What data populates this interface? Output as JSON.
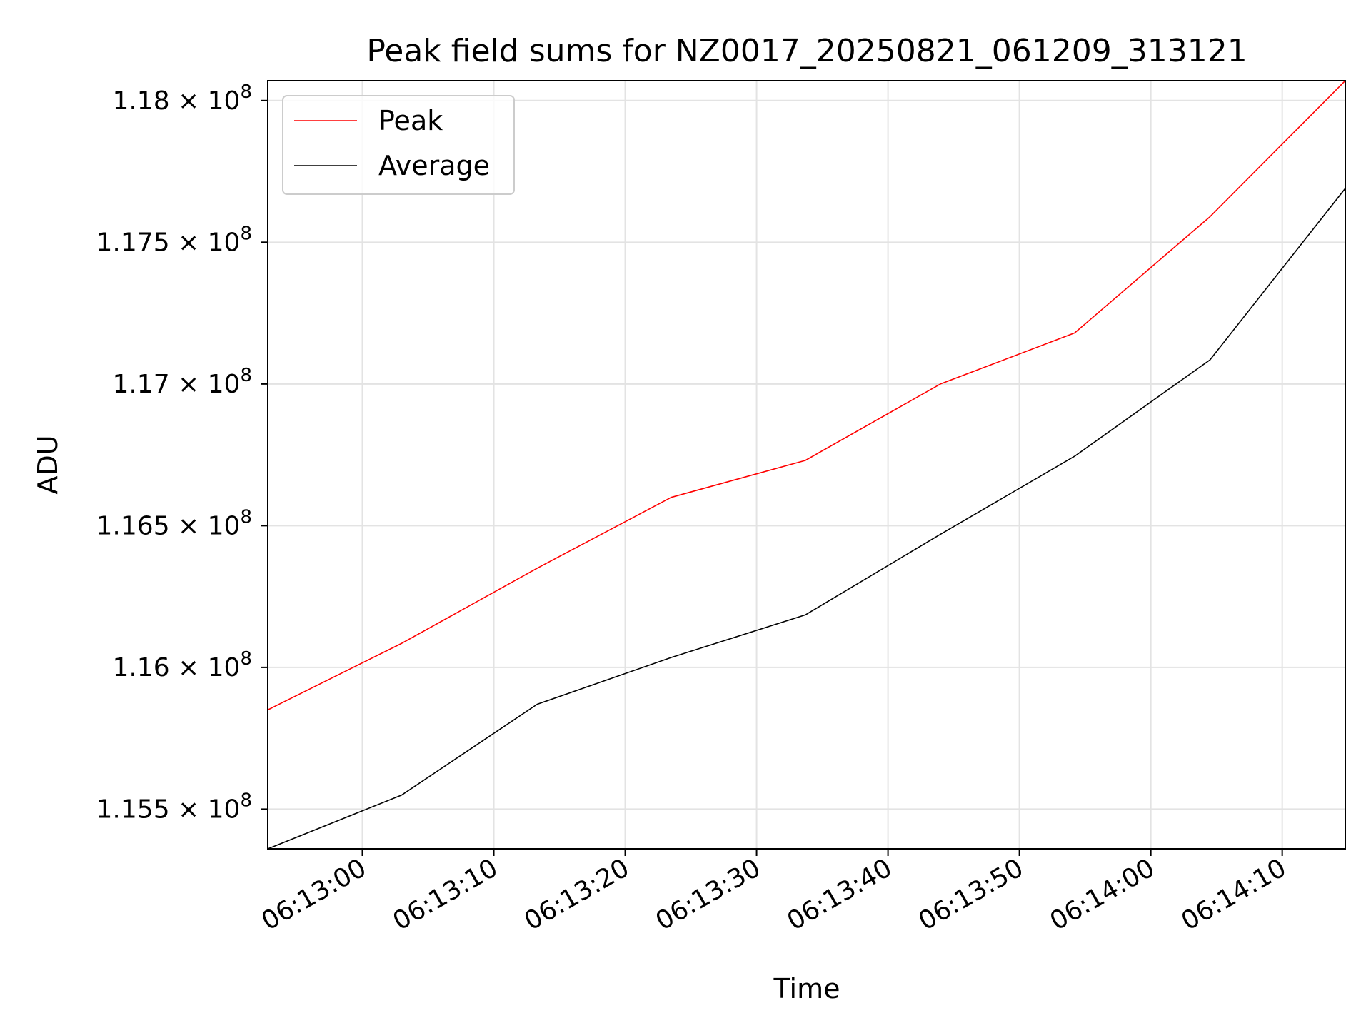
{
  "chart_data": {
    "type": "line",
    "title": "Peak field sums for NZ0017_20250821_061209_313121",
    "xlabel": "Time",
    "ylabel": "ADU",
    "x_type": "time",
    "xlim": [
      "06:12:52.8",
      "06:14:14.8"
    ],
    "ylim": [
      115360000,
      118070000
    ],
    "x_ticks": [
      "06:13:00",
      "06:13:10",
      "06:13:20",
      "06:13:30",
      "06:13:40",
      "06:13:50",
      "06:14:00",
      "06:14:10"
    ],
    "y_ticks": [
      {
        "value": 115500000,
        "mantissa": "1.155",
        "exponent": "8"
      },
      {
        "value": 116000000,
        "mantissa": "1.16",
        "exponent": "8"
      },
      {
        "value": 116500000,
        "mantissa": "1.165",
        "exponent": "8"
      },
      {
        "value": 117000000,
        "mantissa": "1.17",
        "exponent": "8"
      },
      {
        "value": 117500000,
        "mantissa": "1.175",
        "exponent": "8"
      },
      {
        "value": 118000000,
        "mantissa": "1.18",
        "exponent": "8"
      }
    ],
    "grid": true,
    "legend_position": "top-left",
    "series": [
      {
        "name": "Peak",
        "color": "#ff0000",
        "x": [
          "06:12:52.8",
          "06:13:03.0",
          "06:13:13.3",
          "06:13:23.5",
          "06:13:33.7",
          "06:13:44.0",
          "06:13:54.2",
          "06:14:04.5",
          "06:14:14.8"
        ],
        "y": [
          115850000,
          116085000,
          116350000,
          116600000,
          116730000,
          117000000,
          117180000,
          117590000,
          118070000
        ]
      },
      {
        "name": "Average",
        "color": "#000000",
        "x": [
          "06:12:52.8",
          "06:13:03.0",
          "06:13:13.3",
          "06:13:23.5",
          "06:13:33.7",
          "06:13:44.0",
          "06:13:54.2",
          "06:14:04.5",
          "06:14:14.8"
        ],
        "y": [
          115360000,
          115550000,
          115870000,
          116035000,
          116185000,
          116470000,
          116745000,
          117085000,
          117690000
        ]
      }
    ]
  }
}
